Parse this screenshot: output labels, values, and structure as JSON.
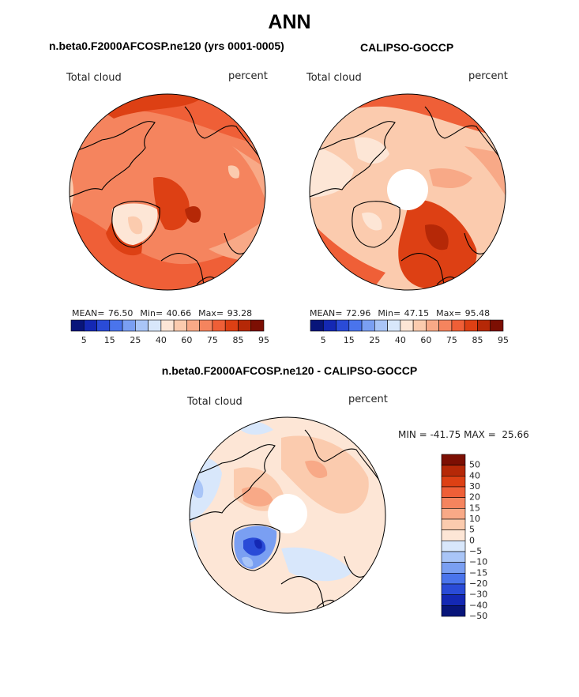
{
  "figure": {
    "title": "ANN"
  },
  "colors": {
    "land_outline": "#000000",
    "missing_data": "#ffffff"
  },
  "chart_data": [
    {
      "type": "heatmap",
      "projection": "north-polar-stereographic",
      "title": "n.beta0.F2000AFCOSP.ne120 (yrs 0001-0005)",
      "left_label": "Total cloud",
      "right_label": "percent",
      "stats": {
        "mean_label": "MEAN=",
        "mean": "76.50",
        "min_label": "Min=",
        "min": "40.66",
        "max_label": "Max=",
        "max": "93.28"
      },
      "colorbar": {
        "orientation": "horizontal",
        "colors": [
          "#08157a",
          "#1428b4",
          "#2a4bd7",
          "#4a74ec",
          "#7a9ff2",
          "#a9c5f7",
          "#d8e7fb",
          "#fde6d6",
          "#fbcbae",
          "#f8a987",
          "#f5845e",
          "#ef5f37",
          "#dd4014",
          "#b52807",
          "#7c0f03"
        ],
        "tick_labels": [
          "5",
          "15",
          "25",
          "40",
          "60",
          "75",
          "85",
          "95"
        ]
      },
      "dominant_value_range": [
        60,
        95
      ]
    },
    {
      "type": "heatmap",
      "projection": "north-polar-stereographic",
      "title": "CALIPSO-GOCCP",
      "left_label": "Total cloud",
      "right_label": "percent",
      "stats": {
        "mean_label": "MEAN=",
        "mean": "72.96",
        "min_label": "Min=",
        "min": "47.15",
        "max_label": "Max=",
        "max": "95.48"
      },
      "colorbar": {
        "orientation": "horizontal",
        "colors": [
          "#08157a",
          "#1428b4",
          "#2a4bd7",
          "#4a74ec",
          "#7a9ff2",
          "#a9c5f7",
          "#d8e7fb",
          "#fde6d6",
          "#fbcbae",
          "#f8a987",
          "#f5845e",
          "#ef5f37",
          "#dd4014",
          "#b52807",
          "#7c0f03"
        ],
        "tick_labels": [
          "5",
          "15",
          "25",
          "40",
          "60",
          "75",
          "85",
          "95"
        ]
      },
      "missing_polar_cap": true,
      "dominant_value_range": [
        60,
        85
      ]
    },
    {
      "type": "heatmap",
      "projection": "north-polar-stereographic",
      "title": "n.beta0.F2000AFCOSP.ne120 - CALIPSO-GOCCP",
      "left_label": "Total cloud",
      "right_label": "percent",
      "stats": {
        "min_label": "MIN =",
        "min": "-41.75",
        "max_label": "MAX =",
        "max": "25.66"
      },
      "colorbar": {
        "orientation": "vertical",
        "colors": [
          "#7c0f03",
          "#b52807",
          "#dd4014",
          "#ef5f37",
          "#f5845e",
          "#f8a987",
          "#fbcbae",
          "#fde6d6",
          "#d8e7fb",
          "#a9c5f7",
          "#7a9ff2",
          "#4a74ec",
          "#2a4bd7",
          "#1428b4",
          "#08157a"
        ],
        "tick_labels": [
          "50",
          "40",
          "30",
          "20",
          "15",
          "10",
          "5",
          "0",
          "−5",
          "−10",
          "−15",
          "−20",
          "−30",
          "−40",
          "−50"
        ]
      },
      "missing_polar_cap": true,
      "dominant_value_range": [
        -5,
        15
      ]
    }
  ]
}
